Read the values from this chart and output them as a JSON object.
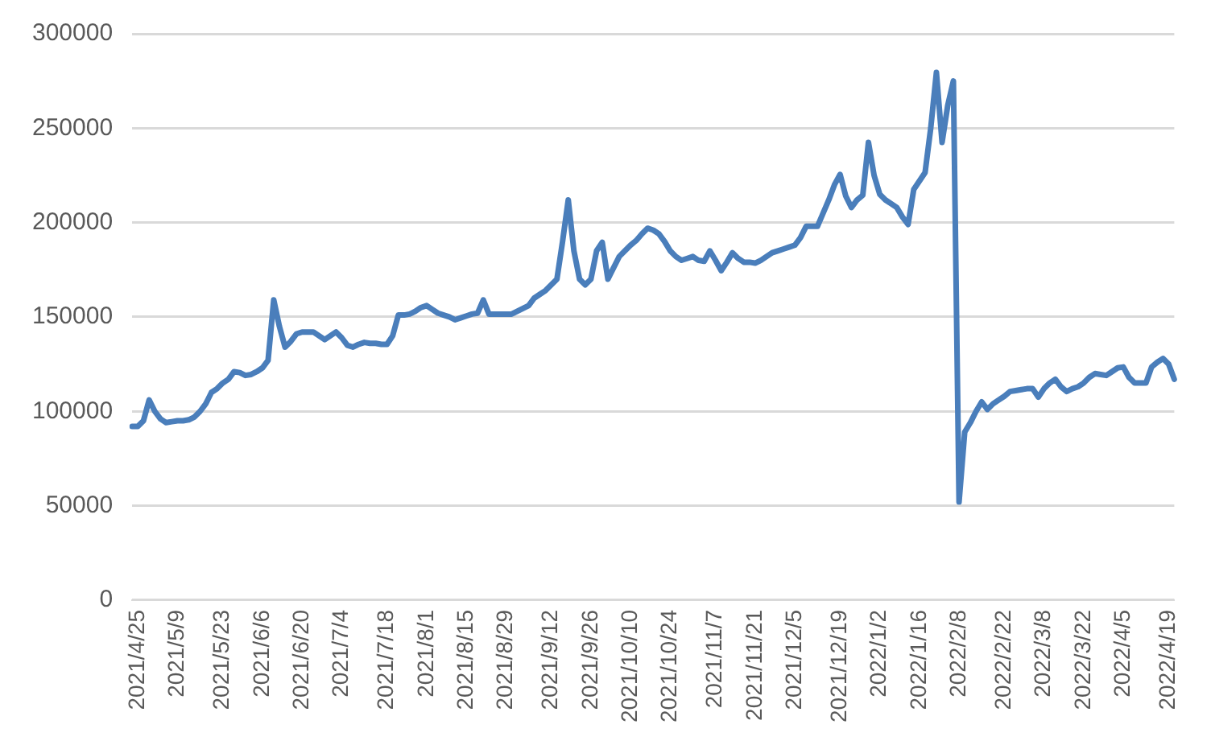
{
  "chart_data": {
    "type": "line",
    "color": "#4a7ebb",
    "grid": "y",
    "ylim": [
      0,
      300000
    ],
    "yticks": [
      0,
      50000,
      100000,
      150000,
      200000,
      250000,
      300000
    ],
    "categories": [
      null,
      "2021/4/25",
      null,
      null,
      null,
      null,
      null,
      null,
      "2021/5/9",
      null,
      null,
      null,
      null,
      null,
      null,
      null,
      "2021/5/23",
      null,
      null,
      null,
      null,
      null,
      null,
      "2021/6/6",
      null,
      null,
      null,
      null,
      null,
      null,
      "2021/6/20",
      null,
      null,
      null,
      null,
      null,
      null,
      "2021/7/4",
      null,
      null,
      null,
      null,
      null,
      null,
      null,
      "2021/7/18",
      null,
      null,
      null,
      null,
      null,
      null,
      "2021/8/1",
      null,
      null,
      null,
      null,
      null,
      null,
      "2021/8/15",
      null,
      null,
      null,
      null,
      null,
      null,
      "2021/8/29",
      null,
      null,
      null,
      null,
      null,
      null,
      null,
      "2021/9/12",
      null,
      null,
      null,
      null,
      null,
      null,
      "2021/9/26",
      null,
      null,
      null,
      null,
      null,
      null,
      "2021/10/10",
      null,
      null,
      null,
      null,
      null,
      null,
      "2021/10/24",
      null,
      null,
      null,
      null,
      null,
      null,
      null,
      "2021/11/7",
      null,
      null,
      null,
      null,
      null,
      null,
      "2021/11/21",
      null,
      null,
      null,
      null,
      null,
      null,
      "2021/12/5",
      null,
      null,
      null,
      null,
      null,
      null,
      null,
      "2021/12/19",
      null,
      null,
      null,
      null,
      null,
      null,
      "2022/1/2",
      null,
      null,
      null,
      null,
      null,
      null,
      "2022/1/16",
      null,
      null,
      null,
      null,
      null,
      null,
      "2022/2/8",
      null,
      null,
      null,
      null,
      null,
      null,
      null,
      "2022/2/22",
      null,
      null,
      null,
      null,
      null,
      null,
      "2022/3/8",
      null,
      null,
      null,
      null,
      null,
      null,
      "2022/3/22",
      null,
      null,
      null,
      null,
      null,
      null,
      "2022/4/5",
      null,
      null,
      null,
      null,
      null,
      null,
      null,
      "2022/4/19",
      null
    ],
    "values": [
      92000,
      92000,
      95000,
      106000,
      100000,
      96000,
      94000,
      94500,
      95000,
      95000,
      95500,
      97000,
      100000,
      104000,
      110000,
      112000,
      115000,
      117000,
      121000,
      120500,
      119000,
      119500,
      121000,
      123000,
      127000,
      159000,
      145000,
      134000,
      137000,
      141000,
      142000,
      142000,
      142000,
      140000,
      138000,
      140000,
      142000,
      139000,
      135000,
      134000,
      135500,
      136500,
      136000,
      136000,
      135500,
      135500,
      140000,
      151000,
      151000,
      151500,
      153000,
      155000,
      156000,
      154000,
      152000,
      151000,
      150000,
      148500,
      149500,
      150500,
      151500,
      152000,
      159000,
      151500,
      151500,
      151500,
      151500,
      151500,
      153000,
      154500,
      156000,
      160000,
      162000,
      164000,
      167000,
      170000,
      190000,
      212000,
      185000,
      170000,
      167000,
      170000,
      185000,
      189500,
      170000,
      176000,
      182000,
      185000,
      188000,
      190500,
      194000,
      197000,
      196000,
      194000,
      190000,
      185000,
      182000,
      180000,
      181000,
      182000,
      180000,
      179500,
      185000,
      180000,
      174500,
      179000,
      184000,
      181000,
      179000,
      179000,
      178500,
      180000,
      182000,
      184000,
      185000,
      186000,
      187000,
      188000,
      192000,
      198000,
      198000,
      198000,
      205000,
      212000,
      220000,
      225500,
      214000,
      208000,
      212000,
      214500,
      242500,
      225000,
      215000,
      212000,
      210000,
      208000,
      203000,
      199000,
      217500,
      222000,
      226500,
      250000,
      279500,
      242500,
      262000,
      275000,
      52000,
      89000,
      94000,
      100000,
      105000,
      101000,
      104000,
      106000,
      108000,
      110500,
      111000,
      111500,
      112000,
      112000,
      107500,
      112000,
      115000,
      117000,
      113000,
      110500,
      112000,
      113000,
      115000,
      118000,
      120000,
      119500,
      119000,
      121000,
      123000,
      123500,
      118000,
      115000,
      115000,
      115000,
      123500,
      126000,
      128000,
      125000,
      117000
    ]
  }
}
